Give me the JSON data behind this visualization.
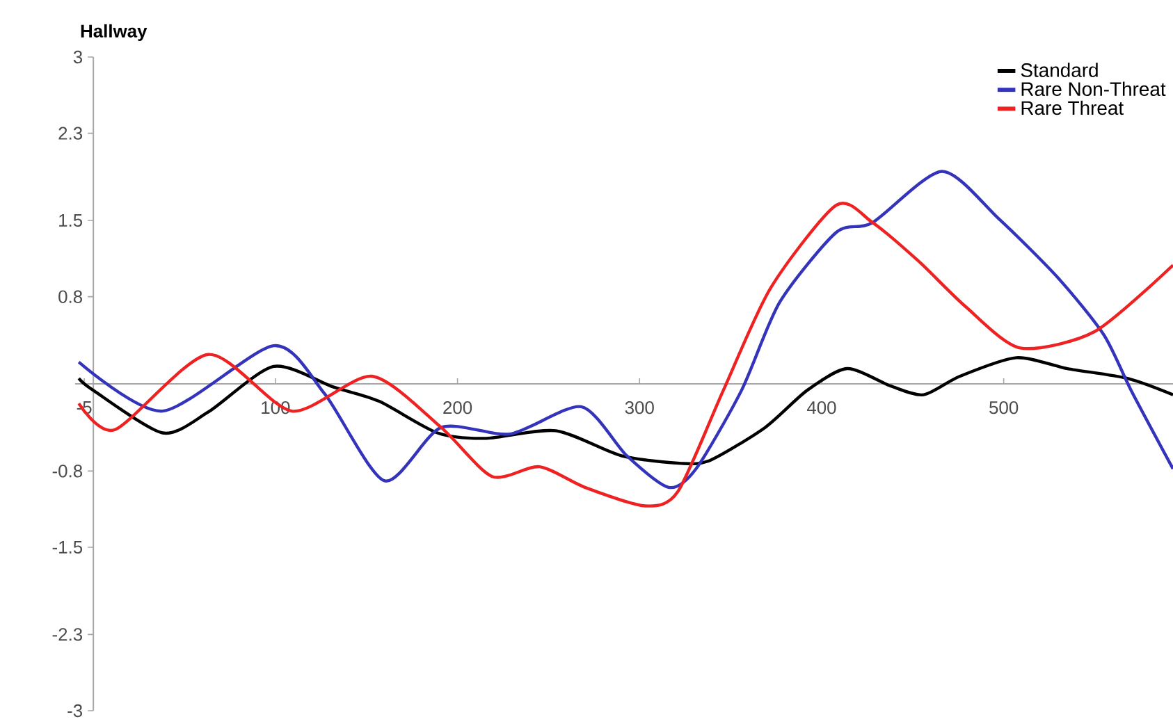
{
  "chart_data": {
    "type": "line",
    "title": "Hallway",
    "xlim": [
      -10,
      593
    ],
    "ylim": [
      -3,
      3
    ],
    "xticks": [
      -5,
      100,
      200,
      300,
      400,
      500
    ],
    "yticks": [
      3,
      2.3,
      1.5,
      0.8,
      -0.8,
      -1.5,
      -2.3,
      -3
    ],
    "legend": "top right",
    "marker": "none",
    "line_style": "solid",
    "grid": false,
    "series": [
      {
        "name": "Standard",
        "color": "#000000",
        "x": [
          -8,
          0,
          38,
          63,
          99,
          132,
          157,
          189,
          216,
          254,
          290,
          323,
          339,
          369,
          392,
          414,
          438,
          456,
          476,
          507,
          535,
          568,
          593
        ],
        "values": [
          0.05,
          -0.06,
          -0.45,
          -0.26,
          0.16,
          -0.03,
          -0.16,
          -0.45,
          -0.5,
          -0.43,
          -0.66,
          -0.73,
          -0.7,
          -0.4,
          -0.06,
          0.14,
          -0.02,
          -0.1,
          0.07,
          0.24,
          0.14,
          0.05,
          -0.1
        ]
      },
      {
        "name": "Rare Non-Threat",
        "color": "#3333bb",
        "x": [
          -8,
          38,
          99,
          127,
          160,
          191,
          229,
          268,
          293,
          316,
          331,
          356,
          377,
          408,
          428,
          466,
          497,
          530,
          555,
          570,
          593
        ],
        "values": [
          0.2,
          -0.25,
          0.35,
          -0.09,
          -0.89,
          -0.4,
          -0.46,
          -0.21,
          -0.66,
          -0.95,
          -0.78,
          -0.06,
          0.75,
          1.39,
          1.48,
          1.95,
          1.52,
          0.97,
          0.45,
          -0.06,
          -0.78
        ]
      },
      {
        "name": "Rare Threat",
        "color": "#ee2222",
        "x": [
          -8,
          12,
          63,
          109,
          153,
          191,
          219,
          245,
          270,
          303,
          321,
          346,
          372,
          408,
          428,
          453,
          479,
          509,
          550,
          593
        ],
        "values": [
          -0.18,
          -0.42,
          0.27,
          -0.25,
          0.07,
          -0.4,
          -0.85,
          -0.76,
          -0.95,
          -1.12,
          -0.99,
          -0.06,
          0.88,
          1.64,
          1.48,
          1.13,
          0.71,
          0.33,
          0.48,
          1.09
        ]
      }
    ]
  }
}
